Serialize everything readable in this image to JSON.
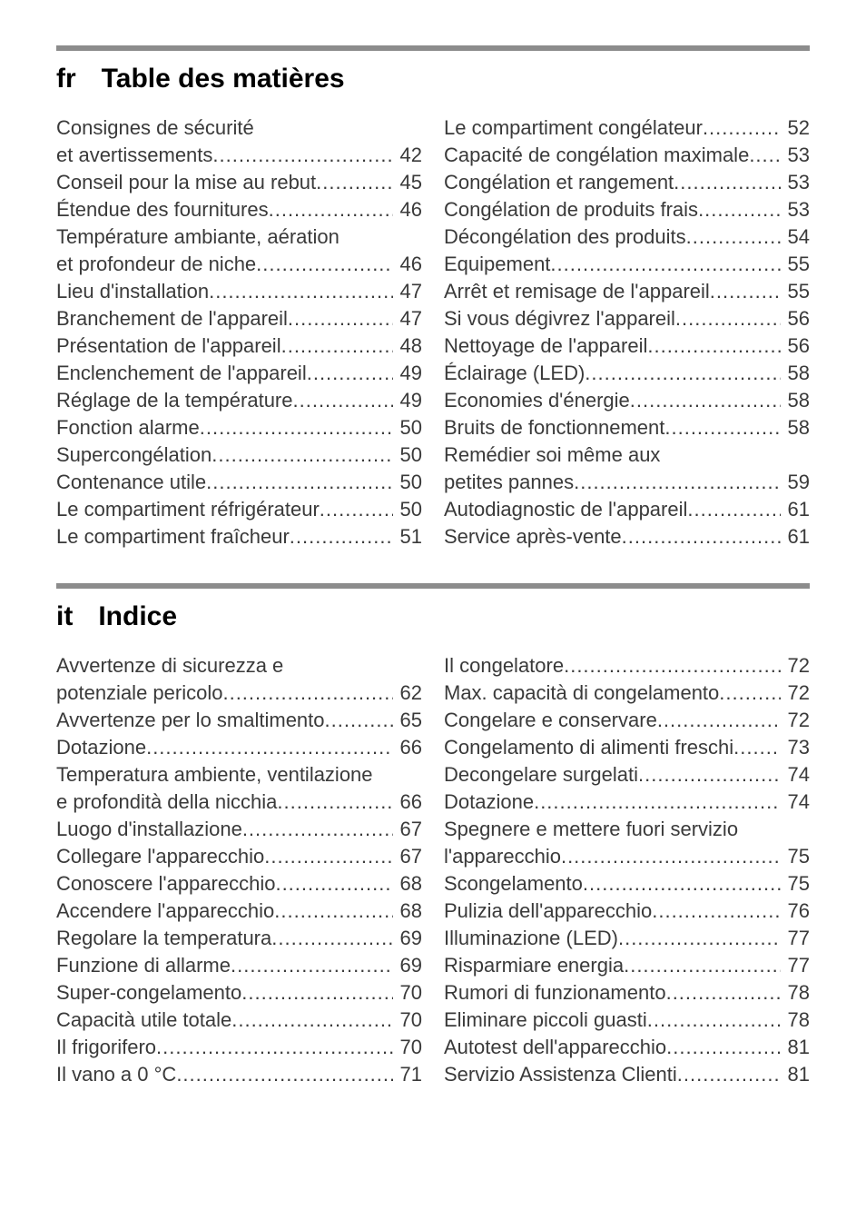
{
  "sections": [
    {
      "lang": "fr",
      "title": "Table des matières",
      "left": [
        {
          "wrap": "Consignes de sécurité"
        },
        {
          "label": "et avertissements",
          "page": "42"
        },
        {
          "label": "Conseil pour la mise au rebut",
          "page": "45"
        },
        {
          "label": "Étendue des fournitures",
          "page": "46"
        },
        {
          "wrap": "Température ambiante, aération"
        },
        {
          "label": "et profondeur de niche",
          "page": "46"
        },
        {
          "label": "Lieu d'installation",
          "page": "47"
        },
        {
          "label": "Branchement de l'appareil",
          "page": "47"
        },
        {
          "label": "Présentation de l'appareil",
          "page": "48"
        },
        {
          "label": "Enclenchement de l'appareil",
          "page": "49"
        },
        {
          "label": "Réglage de la température",
          "page": "49"
        },
        {
          "label": "Fonction alarme",
          "page": "50"
        },
        {
          "label": "Supercongélation",
          "page": "50"
        },
        {
          "label": "Contenance utile",
          "page": "50"
        },
        {
          "label": "Le compartiment réfrigérateur",
          "page": "50"
        },
        {
          "label": "Le compartiment fraîcheur",
          "page": "51"
        }
      ],
      "right": [
        {
          "label": "Le compartiment congélateur",
          "page": "52"
        },
        {
          "label": "Capacité de congélation maximale",
          "page": "53"
        },
        {
          "label": "Congélation et rangement",
          "page": "53"
        },
        {
          "label": "Congélation de produits frais",
          "page": "53"
        },
        {
          "label": "Décongélation des produits",
          "page": "54"
        },
        {
          "label": "Equipement",
          "page": "55"
        },
        {
          "label": "Arrêt et remisage de l'appareil",
          "page": "55"
        },
        {
          "label": "Si vous dégivrez l'appareil",
          "page": "56"
        },
        {
          "label": "Nettoyage de l'appareil",
          "page": "56"
        },
        {
          "label": "Éclairage (LED)",
          "page": "58"
        },
        {
          "label": "Economies d'énergie",
          "page": "58"
        },
        {
          "label": "Bruits de fonctionnement",
          "page": "58"
        },
        {
          "wrap": "Remédier soi même aux"
        },
        {
          "label": "petites pannes",
          "page": "59"
        },
        {
          "label": "Autodiagnostic de l'appareil",
          "page": "61"
        },
        {
          "label": "Service après-vente",
          "page": "61"
        }
      ]
    },
    {
      "lang": "it",
      "title": "Indice",
      "left": [
        {
          "wrap": "Avvertenze di sicurezza e"
        },
        {
          "label": "potenziale pericolo",
          "page": "62"
        },
        {
          "label": "Avvertenze per lo smaltimento",
          "page": "65"
        },
        {
          "label": "Dotazione",
          "page": "66"
        },
        {
          "wrap": "Temperatura ambiente, ventilazione"
        },
        {
          "label": "e profondità della nicchia",
          "page": "66"
        },
        {
          "label": "Luogo d'installazione",
          "page": "67"
        },
        {
          "label": "Collegare l'apparecchio",
          "page": "67"
        },
        {
          "label": "Conoscere l'apparecchio",
          "page": "68"
        },
        {
          "label": "Accendere l'apparecchio",
          "page": "68"
        },
        {
          "label": "Regolare la temperatura",
          "page": "69"
        },
        {
          "label": "Funzione di allarme",
          "page": "69"
        },
        {
          "label": "Super-congelamento",
          "page": "70"
        },
        {
          "label": "Capacità utile totale",
          "page": "70"
        },
        {
          "label": "Il frigorifero",
          "page": "70"
        },
        {
          "label": "Il vano a 0 °C",
          "page": "71"
        }
      ],
      "right": [
        {
          "label": "Il congelatore",
          "page": "72"
        },
        {
          "label": "Max. capacità di congelamento",
          "page": "72"
        },
        {
          "label": "Congelare e conservare",
          "page": "72"
        },
        {
          "label": "Congelamento di alimenti freschi",
          "page": "73"
        },
        {
          "label": "Decongelare surgelati",
          "page": "74"
        },
        {
          "label": "Dotazione",
          "page": "74"
        },
        {
          "wrap": "Spegnere e mettere fuori servizio"
        },
        {
          "label": "l'apparecchio",
          "page": "75"
        },
        {
          "label": "Scongelamento",
          "page": "75"
        },
        {
          "label": "Pulizia dell'apparecchio",
          "page": "76"
        },
        {
          "label": "Illuminazione (LED)",
          "page": "77"
        },
        {
          "label": "Risparmiare energia",
          "page": "77"
        },
        {
          "label": "Rumori di funzionamento",
          "page": "78"
        },
        {
          "label": "Eliminare piccoli guasti",
          "page": "78"
        },
        {
          "label": "Autotest dell'apparecchio",
          "page": "81"
        },
        {
          "label": "Servizio Assistenza Clienti",
          "page": "81"
        }
      ]
    }
  ],
  "dot_fill": "..........................................................................................."
}
